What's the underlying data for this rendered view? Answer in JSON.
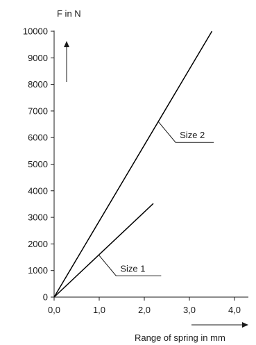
{
  "chart_data": {
    "type": "line",
    "title": "",
    "ylabel": "F in N",
    "xlabel": "Range of spring in mm",
    "xlim": [
      0,
      4
    ],
    "ylim": [
      0,
      10000
    ],
    "x_ticks": [
      "0,0",
      "1,0",
      "2,0",
      "3,0",
      "4,0"
    ],
    "y_ticks": [
      "0",
      "1000",
      "2000",
      "3000",
      "4000",
      "5000",
      "6000",
      "7000",
      "8000",
      "9000",
      "10000"
    ],
    "grid": false,
    "series": [
      {
        "name": "Size 1",
        "x": [
          0,
          2.2
        ],
        "y": [
          0,
          3520
        ]
      },
      {
        "name": "Size 2",
        "x": [
          0,
          3.5
        ],
        "y": [
          0,
          10000
        ]
      }
    ]
  }
}
